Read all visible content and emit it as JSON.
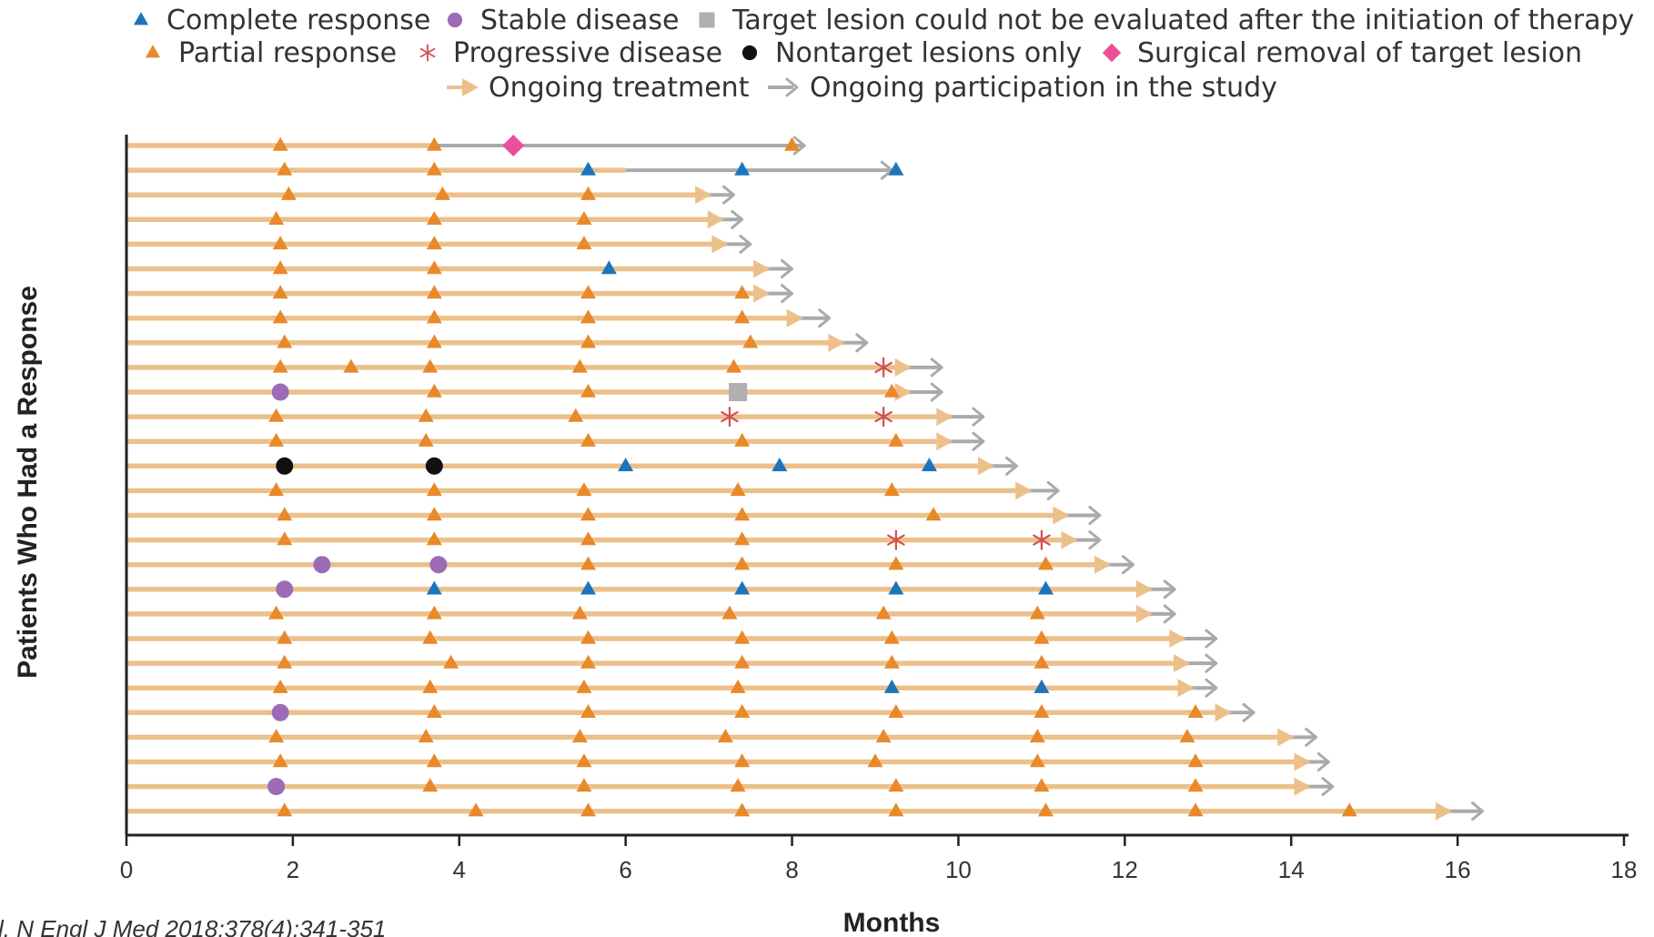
{
  "colors": {
    "treatment": "#ecc08b",
    "participation": "#aaaaaa",
    "complete": "#1b75bb",
    "partial": "#e8892a",
    "stable": "#9b6bb5",
    "progressive": "#d05050",
    "not_evaluated": "#b0b0b0",
    "nontarget": "#111111",
    "surgical": "#e8509a",
    "axis": "#222222"
  },
  "citation": "l. N Engl J Med 2018;378(4):341-351",
  "chart_data": {
    "type": "swimmer",
    "xlabel": "Months",
    "ylabel": "Patients Who Had a Response",
    "xlim": [
      0,
      18
    ],
    "xticks": [
      0,
      2,
      4,
      6,
      8,
      10,
      12,
      14,
      16,
      18
    ],
    "grid": false,
    "legend_position": "top",
    "legend": [
      {
        "key": "C",
        "label": "Complete response",
        "marker": "triangle",
        "color_key": "complete"
      },
      {
        "key": "S",
        "label": "Stable disease",
        "marker": "circle",
        "color_key": "stable"
      },
      {
        "key": "N",
        "label": "Target lesion could not be evaluated after the initiation of therapy",
        "marker": "square",
        "color_key": "not_evaluated"
      },
      {
        "key": "P",
        "label": "Partial response",
        "marker": "triangle",
        "color_key": "partial"
      },
      {
        "key": "D",
        "label": "Progressive disease",
        "marker": "asterisk",
        "color_key": "progressive"
      },
      {
        "key": "B",
        "label": "Nontarget lesions only",
        "marker": "circle",
        "color_key": "nontarget"
      },
      {
        "key": "R",
        "label": "Surgical removal of target lesion",
        "marker": "diamond",
        "color_key": "surgical"
      },
      {
        "key": "T",
        "label": "Ongoing treatment",
        "marker": "arrow",
        "color_key": "treatment"
      },
      {
        "key": "G",
        "label": "Ongoing participation in the study",
        "marker": "arrow",
        "color_key": "participation"
      }
    ],
    "patients": [
      {
        "treatment_end": 3.7,
        "study_end": 8.15,
        "treatment_arrow": false,
        "events": [
          [
            1.85,
            "P"
          ],
          [
            3.7,
            "P"
          ],
          [
            4.65,
            "R"
          ],
          [
            8.0,
            "P"
          ]
        ]
      },
      {
        "treatment_end": 6.0,
        "study_end": 9.2,
        "treatment_arrow": false,
        "events": [
          [
            1.9,
            "P"
          ],
          [
            3.7,
            "P"
          ],
          [
            5.55,
            "C"
          ],
          [
            7.4,
            "C"
          ],
          [
            9.25,
            "C"
          ]
        ]
      },
      {
        "treatment_end": 7.0,
        "study_end": 7.3,
        "treatment_arrow": true,
        "events": [
          [
            1.95,
            "P"
          ],
          [
            3.8,
            "P"
          ],
          [
            5.55,
            "P"
          ]
        ]
      },
      {
        "treatment_end": 7.15,
        "study_end": 7.4,
        "treatment_arrow": true,
        "events": [
          [
            1.8,
            "P"
          ],
          [
            3.7,
            "P"
          ],
          [
            5.5,
            "P"
          ]
        ]
      },
      {
        "treatment_end": 7.2,
        "study_end": 7.5,
        "treatment_arrow": true,
        "events": [
          [
            1.85,
            "P"
          ],
          [
            3.7,
            "P"
          ],
          [
            5.5,
            "P"
          ]
        ]
      },
      {
        "treatment_end": 7.7,
        "study_end": 8.0,
        "treatment_arrow": true,
        "events": [
          [
            1.85,
            "P"
          ],
          [
            3.7,
            "P"
          ],
          [
            5.8,
            "C"
          ]
        ]
      },
      {
        "treatment_end": 7.7,
        "study_end": 8.0,
        "treatment_arrow": true,
        "events": [
          [
            1.85,
            "P"
          ],
          [
            3.7,
            "P"
          ],
          [
            5.55,
            "P"
          ],
          [
            7.4,
            "P"
          ]
        ]
      },
      {
        "treatment_end": 8.1,
        "study_end": 8.45,
        "treatment_arrow": true,
        "events": [
          [
            1.85,
            "P"
          ],
          [
            3.7,
            "P"
          ],
          [
            5.55,
            "P"
          ],
          [
            7.4,
            "P"
          ]
        ]
      },
      {
        "treatment_end": 8.6,
        "study_end": 8.9,
        "treatment_arrow": true,
        "events": [
          [
            1.9,
            "P"
          ],
          [
            3.7,
            "P"
          ],
          [
            5.55,
            "P"
          ],
          [
            7.5,
            "P"
          ]
        ]
      },
      {
        "treatment_end": 9.4,
        "study_end": 9.8,
        "treatment_arrow": true,
        "events": [
          [
            1.85,
            "P"
          ],
          [
            2.7,
            "P"
          ],
          [
            3.65,
            "P"
          ],
          [
            5.45,
            "P"
          ],
          [
            7.3,
            "P"
          ],
          [
            9.1,
            "D"
          ]
        ]
      },
      {
        "treatment_end": 9.4,
        "study_end": 9.8,
        "treatment_arrow": true,
        "events": [
          [
            1.85,
            "S"
          ],
          [
            3.7,
            "P"
          ],
          [
            5.55,
            "P"
          ],
          [
            7.35,
            "N"
          ],
          [
            9.2,
            "P"
          ]
        ]
      },
      {
        "treatment_end": 9.9,
        "study_end": 10.3,
        "treatment_arrow": true,
        "events": [
          [
            1.8,
            "P"
          ],
          [
            3.6,
            "P"
          ],
          [
            5.4,
            "P"
          ],
          [
            7.25,
            "D"
          ],
          [
            9.1,
            "D"
          ]
        ]
      },
      {
        "treatment_end": 9.9,
        "study_end": 10.3,
        "treatment_arrow": true,
        "events": [
          [
            1.8,
            "P"
          ],
          [
            3.6,
            "P"
          ],
          [
            5.55,
            "P"
          ],
          [
            7.4,
            "P"
          ],
          [
            9.25,
            "P"
          ]
        ]
      },
      {
        "treatment_end": 10.4,
        "study_end": 10.7,
        "treatment_arrow": true,
        "events": [
          [
            1.9,
            "B"
          ],
          [
            3.7,
            "B"
          ],
          [
            6.0,
            "C"
          ],
          [
            7.85,
            "C"
          ],
          [
            9.65,
            "C"
          ]
        ]
      },
      {
        "treatment_end": 10.85,
        "study_end": 11.2,
        "treatment_arrow": true,
        "events": [
          [
            1.8,
            "P"
          ],
          [
            3.7,
            "P"
          ],
          [
            5.5,
            "P"
          ],
          [
            7.35,
            "P"
          ],
          [
            9.2,
            "P"
          ]
        ]
      },
      {
        "treatment_end": 11.3,
        "study_end": 11.7,
        "treatment_arrow": true,
        "events": [
          [
            1.9,
            "P"
          ],
          [
            3.7,
            "P"
          ],
          [
            5.55,
            "P"
          ],
          [
            7.4,
            "P"
          ],
          [
            9.7,
            "P"
          ]
        ]
      },
      {
        "treatment_end": 11.4,
        "study_end": 11.7,
        "treatment_arrow": true,
        "events": [
          [
            1.9,
            "P"
          ],
          [
            3.7,
            "P"
          ],
          [
            5.55,
            "P"
          ],
          [
            7.4,
            "P"
          ],
          [
            9.25,
            "D"
          ],
          [
            11.0,
            "D"
          ]
        ]
      },
      {
        "treatment_end": 11.8,
        "study_end": 12.1,
        "treatment_arrow": true,
        "events": [
          [
            2.35,
            "S"
          ],
          [
            3.75,
            "S"
          ],
          [
            5.55,
            "P"
          ],
          [
            7.4,
            "P"
          ],
          [
            9.25,
            "P"
          ],
          [
            11.05,
            "P"
          ]
        ]
      },
      {
        "treatment_end": 12.3,
        "study_end": 12.6,
        "treatment_arrow": true,
        "events": [
          [
            1.9,
            "S"
          ],
          [
            3.7,
            "C"
          ],
          [
            5.55,
            "C"
          ],
          [
            7.4,
            "C"
          ],
          [
            9.25,
            "C"
          ],
          [
            11.05,
            "C"
          ]
        ]
      },
      {
        "treatment_end": 12.3,
        "study_end": 12.6,
        "treatment_arrow": true,
        "events": [
          [
            1.8,
            "P"
          ],
          [
            3.7,
            "P"
          ],
          [
            5.45,
            "P"
          ],
          [
            7.25,
            "P"
          ],
          [
            9.1,
            "P"
          ],
          [
            10.95,
            "P"
          ]
        ]
      },
      {
        "treatment_end": 12.7,
        "study_end": 13.1,
        "treatment_arrow": true,
        "events": [
          [
            1.9,
            "P"
          ],
          [
            3.65,
            "P"
          ],
          [
            5.55,
            "P"
          ],
          [
            7.4,
            "P"
          ],
          [
            9.2,
            "P"
          ],
          [
            11.0,
            "P"
          ]
        ]
      },
      {
        "treatment_end": 12.75,
        "study_end": 13.1,
        "treatment_arrow": true,
        "events": [
          [
            1.9,
            "P"
          ],
          [
            3.9,
            "P"
          ],
          [
            5.55,
            "P"
          ],
          [
            7.4,
            "P"
          ],
          [
            9.2,
            "P"
          ],
          [
            11.0,
            "P"
          ]
        ]
      },
      {
        "treatment_end": 12.8,
        "study_end": 13.1,
        "treatment_arrow": true,
        "events": [
          [
            1.85,
            "P"
          ],
          [
            3.65,
            "P"
          ],
          [
            5.5,
            "P"
          ],
          [
            7.35,
            "P"
          ],
          [
            9.2,
            "C"
          ],
          [
            11.0,
            "C"
          ]
        ]
      },
      {
        "treatment_end": 13.25,
        "study_end": 13.55,
        "treatment_arrow": true,
        "events": [
          [
            1.85,
            "S"
          ],
          [
            3.7,
            "P"
          ],
          [
            5.55,
            "P"
          ],
          [
            7.4,
            "P"
          ],
          [
            9.25,
            "P"
          ],
          [
            11.0,
            "P"
          ],
          [
            12.85,
            "P"
          ]
        ]
      },
      {
        "treatment_end": 14.0,
        "study_end": 14.3,
        "treatment_arrow": true,
        "events": [
          [
            1.8,
            "P"
          ],
          [
            3.6,
            "P"
          ],
          [
            5.45,
            "P"
          ],
          [
            7.2,
            "P"
          ],
          [
            9.1,
            "P"
          ],
          [
            10.95,
            "P"
          ],
          [
            12.75,
            "P"
          ]
        ]
      },
      {
        "treatment_end": 14.2,
        "study_end": 14.45,
        "treatment_arrow": true,
        "events": [
          [
            1.85,
            "P"
          ],
          [
            3.7,
            "P"
          ],
          [
            5.5,
            "P"
          ],
          [
            7.4,
            "P"
          ],
          [
            9.0,
            "P"
          ],
          [
            10.95,
            "P"
          ],
          [
            12.85,
            "P"
          ]
        ]
      },
      {
        "treatment_end": 14.2,
        "study_end": 14.5,
        "treatment_arrow": true,
        "events": [
          [
            1.8,
            "S"
          ],
          [
            3.65,
            "P"
          ],
          [
            5.5,
            "P"
          ],
          [
            7.35,
            "P"
          ],
          [
            9.25,
            "P"
          ],
          [
            11.0,
            "P"
          ],
          [
            12.85,
            "P"
          ]
        ]
      },
      {
        "treatment_end": 15.9,
        "study_end": 16.3,
        "treatment_arrow": true,
        "events": [
          [
            1.9,
            "P"
          ],
          [
            4.2,
            "P"
          ],
          [
            5.55,
            "P"
          ],
          [
            7.4,
            "P"
          ],
          [
            9.25,
            "P"
          ],
          [
            11.05,
            "P"
          ],
          [
            12.85,
            "P"
          ],
          [
            14.7,
            "P"
          ]
        ]
      }
    ]
  }
}
